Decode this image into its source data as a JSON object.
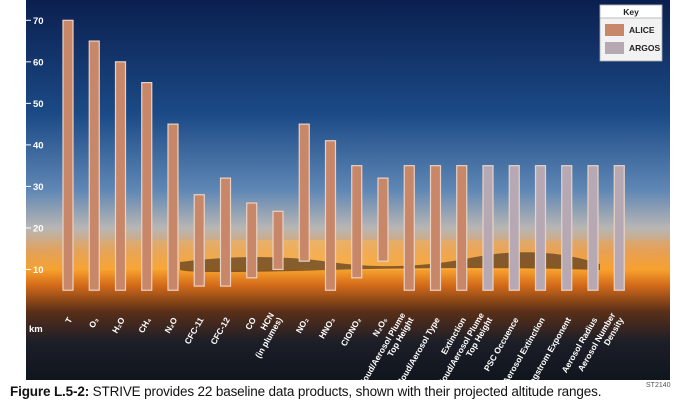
{
  "figure": {
    "caption_label": "Figure L.5-2:",
    "caption_text": " STRIVE provides 22 baseline data products, shown with their projected altitude ranges.",
    "figure_number": "ST2140"
  },
  "chart_data": {
    "type": "bar",
    "subtype": "floating-range",
    "ylabel": "km",
    "ylim": [
      0,
      72
    ],
    "yticks": [
      10,
      20,
      30,
      40,
      50,
      60,
      70
    ],
    "grid": false,
    "legend": {
      "title": "Key",
      "placement": "top-right",
      "entries": [
        {
          "name": "ALICE",
          "color": "#c98769"
        },
        {
          "name": "ARGOS",
          "color": "#b7a9b4"
        }
      ]
    },
    "categories": [
      {
        "label": [
          "T"
        ],
        "min": 5,
        "max": 70,
        "instrument": "ALICE"
      },
      {
        "label": [
          "O₃"
        ],
        "min": 5,
        "max": 65,
        "instrument": "ALICE"
      },
      {
        "label": [
          "H₂O"
        ],
        "min": 5,
        "max": 60,
        "instrument": "ALICE"
      },
      {
        "label": [
          "CH₄"
        ],
        "min": 5,
        "max": 55,
        "instrument": "ALICE"
      },
      {
        "label": [
          "N₂O"
        ],
        "min": 5,
        "max": 45,
        "instrument": "ALICE"
      },
      {
        "label": [
          "CFC-11"
        ],
        "min": 6,
        "max": 28,
        "instrument": "ALICE"
      },
      {
        "label": [
          "CFC-12"
        ],
        "min": 6,
        "max": 32,
        "instrument": "ALICE"
      },
      {
        "label": [
          "CO"
        ],
        "min": 8,
        "max": 26,
        "instrument": "ALICE"
      },
      {
        "label": [
          "HCN",
          "(in plumes)"
        ],
        "min": 10,
        "max": 24,
        "instrument": "ALICE"
      },
      {
        "label": [
          "NO₂"
        ],
        "min": 12,
        "max": 45,
        "instrument": "ALICE"
      },
      {
        "label": [
          "HNO₃"
        ],
        "min": 5,
        "max": 41,
        "instrument": "ALICE"
      },
      {
        "label": [
          "ClONO₂"
        ],
        "min": 8,
        "max": 35,
        "instrument": "ALICE"
      },
      {
        "label": [
          "N₂O₅"
        ],
        "min": 12,
        "max": 32,
        "instrument": "ALICE"
      },
      {
        "label": [
          "Cloud/Aerosol Plume",
          "Top Height"
        ],
        "min": 5,
        "max": 35,
        "instrument": "ALICE"
      },
      {
        "label": [
          "Cloud/Aerosol Type"
        ],
        "min": 5,
        "max": 35,
        "instrument": "ALICE"
      },
      {
        "label": [
          "Extinction"
        ],
        "min": 5,
        "max": 35,
        "instrument": "ALICE"
      },
      {
        "label": [
          "Cloud/Aerosol Plume",
          "Top Height"
        ],
        "min": 5,
        "max": 35,
        "instrument": "ARGOS"
      },
      {
        "label": [
          "PSC Occuence"
        ],
        "min": 5,
        "max": 35,
        "instrument": "ARGOS"
      },
      {
        "label": [
          "Aerosol Extinction"
        ],
        "min": 5,
        "max": 35,
        "instrument": "ARGOS"
      },
      {
        "label": [
          "Ångstrom Exponent"
        ],
        "min": 5,
        "max": 35,
        "instrument": "ARGOS"
      },
      {
        "label": [
          "Aerosol Radius"
        ],
        "min": 5,
        "max": 35,
        "instrument": "ARGOS"
      },
      {
        "label": [
          "Aerosol Number",
          "Density"
        ],
        "min": 5,
        "max": 35,
        "instrument": "ARGOS"
      }
    ]
  }
}
